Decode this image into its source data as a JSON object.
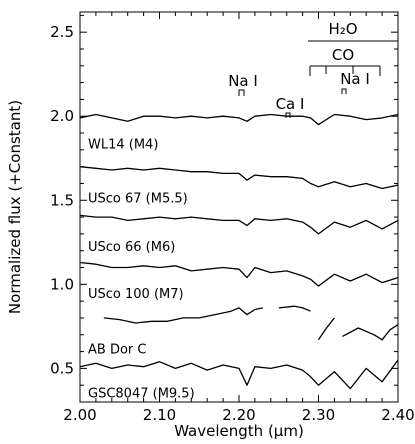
{
  "chart_data": {
    "type": "line",
    "title": "",
    "xlabel": "Wavelength (μm)",
    "ylabel": "Normalized flux (+Constant)",
    "xlim": [
      2.0,
      2.4
    ],
    "ylim": [
      0.3,
      2.62
    ],
    "x_ticks": [
      2.0,
      2.1,
      2.2,
      2.3,
      2.4
    ],
    "x_tick_labels": [
      "2.00",
      "2.10",
      "2.20",
      "2.30",
      "2.40"
    ],
    "y_ticks": [
      0.5,
      1.0,
      1.5,
      2.0,
      2.5
    ],
    "y_tick_labels": [
      "0.5",
      "1.0",
      "1.5",
      "2.0",
      "2.5"
    ],
    "grid": false,
    "legend": "none",
    "series": [
      {
        "name": "WL14 (M4)",
        "x": [
          2.0,
          2.02,
          2.04,
          2.06,
          2.08,
          2.1,
          2.12,
          2.14,
          2.16,
          2.18,
          2.2,
          2.21,
          2.22,
          2.24,
          2.26,
          2.28,
          2.29,
          2.3,
          2.32,
          2.34,
          2.36,
          2.38,
          2.4
        ],
        "y": [
          1.99,
          2.01,
          1.99,
          1.97,
          2.0,
          2.0,
          1.99,
          2.0,
          1.99,
          2.0,
          1.99,
          1.97,
          2.0,
          2.01,
          2.0,
          2.0,
          1.99,
          1.95,
          2.01,
          2.0,
          1.98,
          1.99,
          2.01
        ]
      },
      {
        "name": "USco 67 (M5.5)",
        "x": [
          2.0,
          2.02,
          2.04,
          2.06,
          2.08,
          2.1,
          2.12,
          2.14,
          2.16,
          2.18,
          2.2,
          2.21,
          2.22,
          2.24,
          2.26,
          2.28,
          2.29,
          2.3,
          2.32,
          2.34,
          2.36,
          2.38,
          2.4
        ],
        "y": [
          1.7,
          1.69,
          1.68,
          1.69,
          1.68,
          1.69,
          1.68,
          1.67,
          1.67,
          1.66,
          1.66,
          1.62,
          1.65,
          1.64,
          1.64,
          1.63,
          1.6,
          1.58,
          1.61,
          1.58,
          1.6,
          1.57,
          1.59
        ]
      },
      {
        "name": "USco 66 (M6)",
        "x": [
          2.0,
          2.02,
          2.04,
          2.06,
          2.08,
          2.1,
          2.12,
          2.14,
          2.16,
          2.18,
          2.2,
          2.21,
          2.22,
          2.24,
          2.26,
          2.28,
          2.29,
          2.3,
          2.32,
          2.34,
          2.36,
          2.38,
          2.4
        ],
        "y": [
          1.41,
          1.4,
          1.4,
          1.38,
          1.39,
          1.4,
          1.39,
          1.4,
          1.39,
          1.38,
          1.38,
          1.35,
          1.39,
          1.38,
          1.39,
          1.37,
          1.34,
          1.3,
          1.37,
          1.34,
          1.38,
          1.33,
          1.38
        ]
      },
      {
        "name": "USco 100 (M7)",
        "x": [
          2.0,
          2.02,
          2.04,
          2.06,
          2.08,
          2.1,
          2.12,
          2.14,
          2.16,
          2.18,
          2.2,
          2.21,
          2.22,
          2.24,
          2.26,
          2.28,
          2.29,
          2.3,
          2.32,
          2.34,
          2.36,
          2.38,
          2.4
        ],
        "y": [
          1.13,
          1.12,
          1.1,
          1.1,
          1.11,
          1.1,
          1.11,
          1.08,
          1.09,
          1.1,
          1.09,
          1.04,
          1.1,
          1.07,
          1.08,
          1.05,
          1.03,
          0.99,
          1.06,
          1.02,
          1.06,
          1.01,
          1.04
        ]
      },
      {
        "name": "AB Dor C",
        "x": [
          2.03,
          2.05,
          2.07,
          2.09,
          2.11,
          2.13,
          2.15,
          2.17,
          2.19,
          2.2,
          2.21,
          2.22,
          2.23,
          null,
          2.25,
          2.27,
          2.28,
          2.29,
          null,
          2.3,
          2.31,
          2.32,
          null,
          2.33,
          2.35,
          2.37,
          2.38,
          2.39,
          2.4
        ],
        "y": [
          0.8,
          0.79,
          0.77,
          0.78,
          0.78,
          0.8,
          0.8,
          0.82,
          0.84,
          0.86,
          0.82,
          0.85,
          0.86,
          null,
          0.86,
          0.87,
          0.86,
          0.84,
          null,
          0.67,
          0.74,
          0.8,
          null,
          0.69,
          0.74,
          0.7,
          0.67,
          0.73,
          0.76
        ]
      },
      {
        "name": "GSC8047 (M9.5)",
        "x": [
          2.0,
          2.02,
          2.04,
          2.06,
          2.08,
          2.1,
          2.12,
          2.14,
          2.16,
          2.18,
          2.2,
          2.21,
          2.22,
          2.24,
          2.26,
          2.28,
          2.29,
          2.3,
          2.32,
          2.34,
          2.36,
          2.38,
          2.4
        ],
        "y": [
          0.51,
          0.53,
          0.5,
          0.52,
          0.51,
          0.54,
          0.5,
          0.53,
          0.49,
          0.52,
          0.5,
          0.4,
          0.51,
          0.5,
          0.52,
          0.49,
          0.45,
          0.4,
          0.48,
          0.38,
          0.5,
          0.42,
          0.55
        ]
      }
    ],
    "series_labels": [
      "WL14 (M4)",
      "USco 67 (M5.5)",
      "USco 66 (M6)",
      "USco 100 (M7)",
      "AB Dor C",
      "GSC8047 (M9.5)"
    ],
    "annotations": [
      {
        "text": "H₂O",
        "x": 2.35
      },
      {
        "text": "CO",
        "x": 2.35
      },
      {
        "text": "Na I",
        "x": 2.21
      },
      {
        "text": "Ca I",
        "x": 2.265
      },
      {
        "text": "Na I",
        "x": 2.34
      }
    ]
  }
}
